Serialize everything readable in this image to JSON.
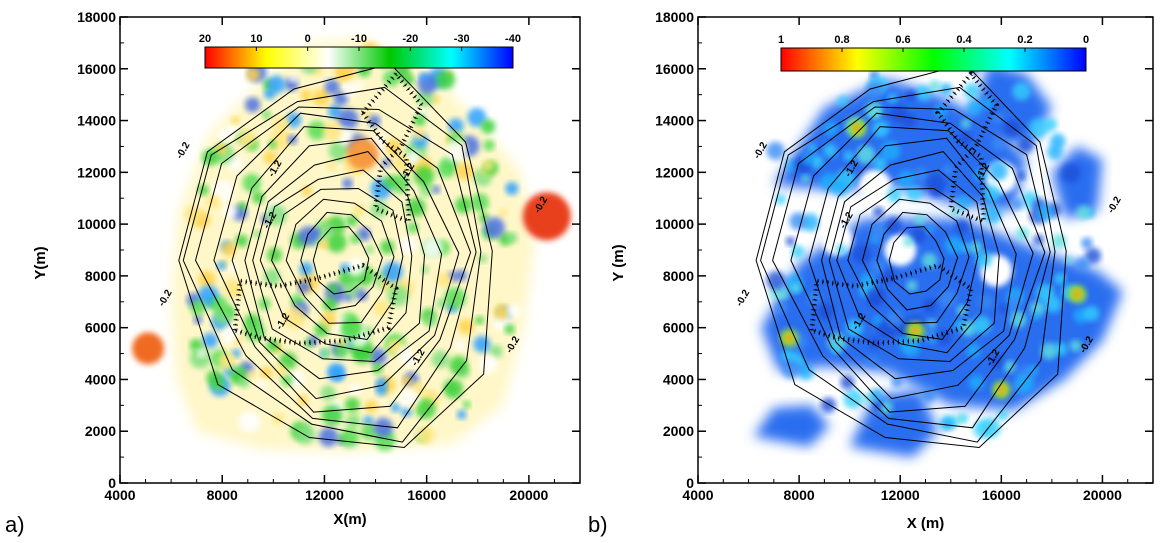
{
  "panels": [
    {
      "label": "a)",
      "xlabel": "X(m)",
      "ylabel": "Y(m)",
      "xticks": [
        "4000",
        "8000",
        "12000",
        "16000",
        "20000"
      ],
      "yticks": [
        "0",
        "2000",
        "4000",
        "6000",
        "8000",
        "10000",
        "12000",
        "14000",
        "16000",
        "18000"
      ],
      "colorbar_ticks": [
        "20",
        "10",
        "0",
        "-10",
        "-20",
        "-30",
        "-40"
      ],
      "contour_labels": [
        "-0.2",
        "-1.2",
        "-1.2",
        "-1.2",
        "-1.2",
        "-0.2",
        "-1.2",
        "-0.2",
        "-0.2"
      ]
    },
    {
      "label": "b)",
      "xlabel": "X (m)",
      "ylabel": "Y (m)",
      "xticks": [
        "4000",
        "8000",
        "12000",
        "16000",
        "20000"
      ],
      "yticks": [
        "0",
        "2000",
        "4000",
        "6000",
        "8000",
        "10000",
        "12000",
        "14000",
        "16000",
        "18000"
      ],
      "colorbar_ticks": [
        "1",
        "0.8",
        "0.6",
        "0.4",
        "0.2",
        "0"
      ],
      "contour_labels": [
        "-0.2",
        "-1.2",
        "-1.2",
        "-1.2",
        "-1.2",
        "-0.2",
        "-1.2",
        "-0.2",
        "-0.2"
      ]
    }
  ],
  "chart_data": [
    {
      "type": "heatmap",
      "xlabel": "X(m)",
      "ylabel": "Y(m)",
      "xlim": [
        4000,
        22000
      ],
      "ylim": [
        0,
        18000
      ],
      "colorbar": {
        "range": [
          20,
          -40
        ],
        "ticks": [
          20,
          10,
          0,
          -10,
          -20,
          -30,
          -40
        ],
        "colors": [
          "#ff0000",
          "#ffff00",
          "#ffffff",
          "#00c800",
          "#00ffff",
          "#0000ff"
        ]
      },
      "contour_levels_labeled": [
        -0.2,
        -1.2
      ],
      "highlights": [
        {
          "x": 20700,
          "y": 10300,
          "value": 18
        },
        {
          "x": 5100,
          "y": 5200,
          "value": 15
        },
        {
          "x": 13500,
          "y": 12700,
          "value": 12
        }
      ]
    },
    {
      "type": "heatmap",
      "xlabel": "X (m)",
      "ylabel": "Y (m)",
      "xlim": [
        4000,
        22000
      ],
      "ylim": [
        0,
        18000
      ],
      "colorbar": {
        "range": [
          1,
          0
        ],
        "ticks": [
          1,
          0.8,
          0.6,
          0.4,
          0.2,
          0
        ],
        "colors": [
          "#ff0000",
          "#ffff00",
          "#00ff00",
          "#00ffff",
          "#0000ff"
        ]
      },
      "contour_levels_labeled": [
        -0.2,
        -1.2
      ],
      "highlights": [
        {
          "x": 10300,
          "y": 13700,
          "value": 0.8
        },
        {
          "x": 7600,
          "y": 5600,
          "value": 0.9
        },
        {
          "x": 12600,
          "y": 5900,
          "value": 0.9
        },
        {
          "x": 16000,
          "y": 3600,
          "value": 0.8
        },
        {
          "x": 19000,
          "y": 7300,
          "value": 0.7
        }
      ]
    }
  ]
}
